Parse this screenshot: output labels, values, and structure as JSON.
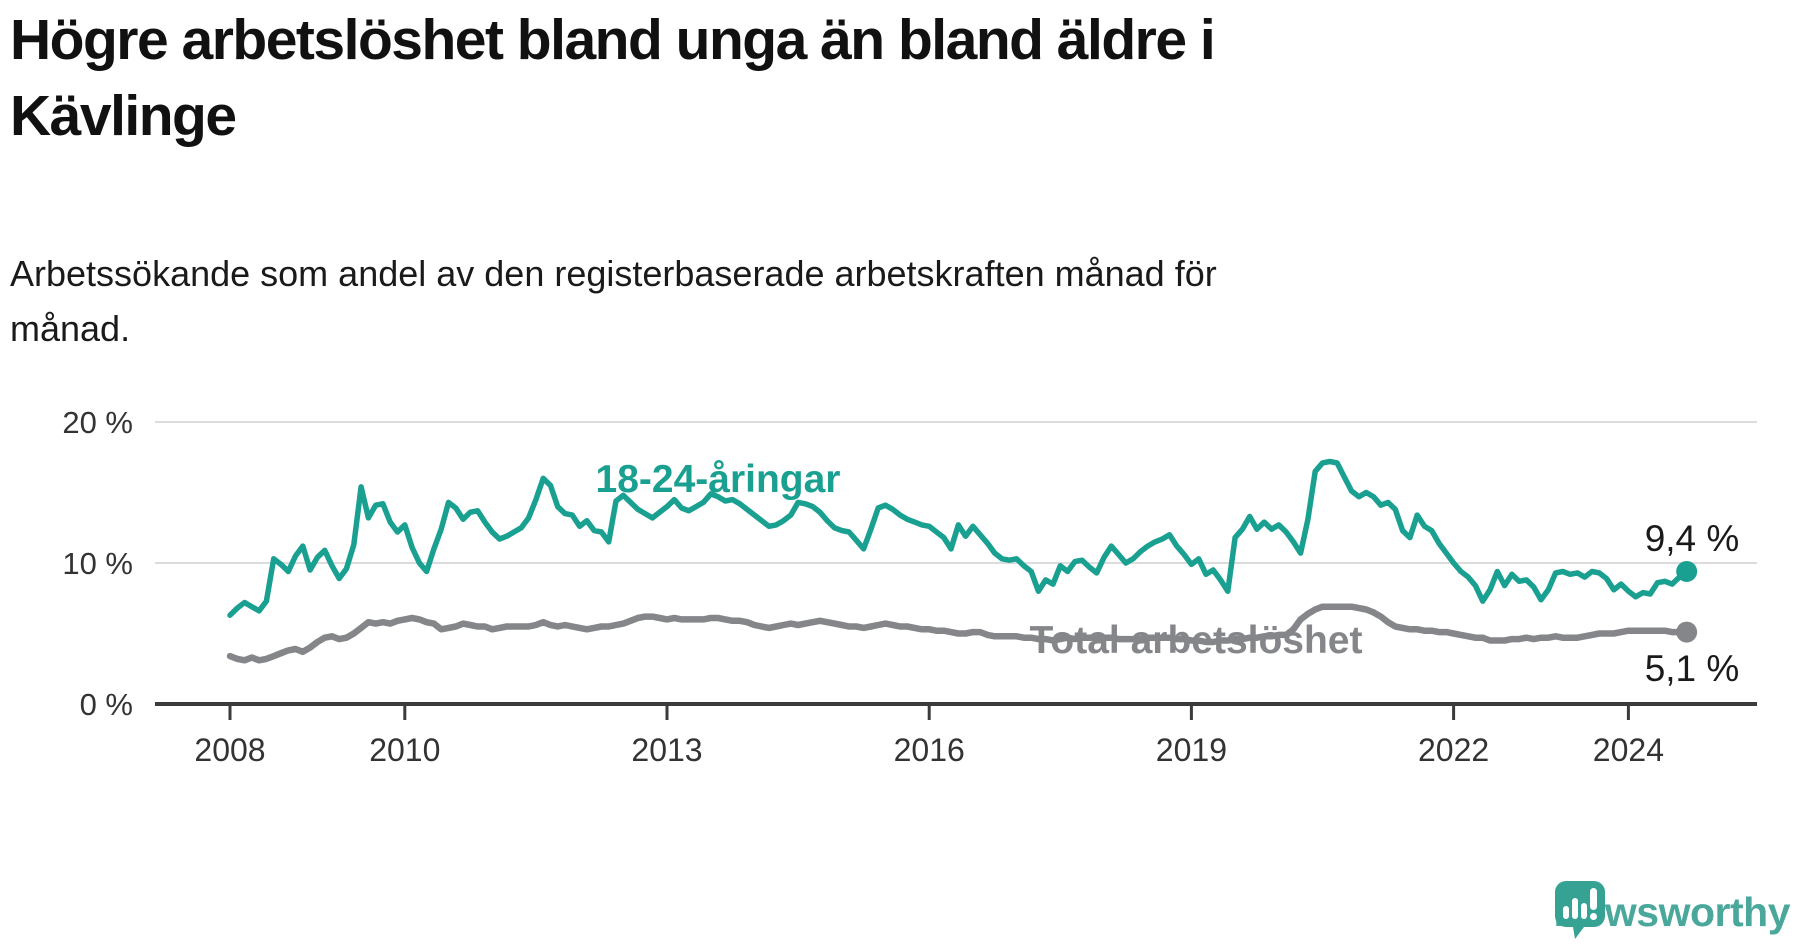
{
  "header": {
    "title_lines": [
      "Högre arbetslöshet bland unga än bland äldre i",
      "Kävlinge"
    ],
    "subtitle_lines": [
      "Arbetssökande som andel av den registerbaserade arbetskraften månad för",
      "månad."
    ]
  },
  "chart": {
    "y_axis": {
      "ticks": [
        {
          "value": 20,
          "label": "20 %"
        },
        {
          "value": 10,
          "label": "10 %"
        },
        {
          "value": 0,
          "label": "0 %"
        }
      ]
    },
    "x_axis": {
      "ticks": [
        {
          "value": 2008,
          "label": "2008"
        },
        {
          "value": 2010,
          "label": "2010"
        },
        {
          "value": 2013,
          "label": "2013"
        },
        {
          "value": 2016,
          "label": "2016"
        },
        {
          "value": 2019,
          "label": "2019"
        },
        {
          "value": 2022,
          "label": "2022"
        },
        {
          "value": 2024,
          "label": "2024"
        }
      ]
    },
    "series_labels": {
      "youth": "18-24-åringar",
      "total": "Total arbetslöshet"
    },
    "end_labels": {
      "youth": "9,4 %",
      "total": "5,1 %"
    },
    "colors": {
      "youth": "#1aa091",
      "total": "#85868a",
      "axis": "#3b3b3b",
      "grid": "#dcdcdc",
      "tick_text": "#333333",
      "value_text": "#1a1a1a",
      "brand_teal": "#4aa79b",
      "logo_bubble": "#35a293"
    }
  },
  "chart_data": {
    "type": "line",
    "title": "Högre arbetslöshet bland unga än bland äldre i Kävlinge",
    "subtitle": "Arbetssökande som andel av den registerbaserade arbetskraften månad för månad.",
    "x_unit": "decimal year, monthly points from Jan 2008 to Sep 2024",
    "x_start": 2008.0,
    "x_step": 0.08333333,
    "xlim": [
      2008.0,
      2024.67
    ],
    "ylim": [
      0,
      21
    ],
    "grid": "horizontal",
    "legend": "inline-labels",
    "series": [
      {
        "name": "18-24-åringar",
        "color": "#1aa091",
        "end_value": 9.4,
        "end_value_label": "9,4 %",
        "values": [
          6.3,
          6.8,
          7.2,
          6.9,
          6.6,
          7.3,
          10.3,
          9.9,
          9.4,
          10.5,
          11.2,
          9.5,
          10.4,
          10.9,
          9.8,
          8.9,
          9.6,
          11.3,
          15.4,
          13.2,
          14.1,
          14.2,
          12.9,
          12.2,
          12.7,
          11.1,
          10.0,
          9.4,
          11.0,
          12.4,
          14.3,
          13.9,
          13.1,
          13.6,
          13.7,
          12.9,
          12.2,
          11.7,
          11.9,
          12.2,
          12.5,
          13.2,
          14.5,
          16.0,
          15.5,
          14.0,
          13.5,
          13.4,
          12.6,
          13.0,
          12.3,
          12.2,
          11.5,
          14.4,
          14.8,
          14.3,
          13.8,
          13.5,
          13.2,
          13.6,
          14.0,
          14.5,
          13.9,
          13.7,
          14.0,
          14.3,
          14.9,
          14.7,
          14.4,
          14.5,
          14.2,
          13.8,
          13.4,
          13.0,
          12.6,
          12.7,
          13.0,
          13.4,
          14.3,
          14.2,
          14.0,
          13.6,
          13.0,
          12.5,
          12.3,
          12.2,
          11.6,
          11.0,
          12.4,
          13.9,
          14.1,
          13.8,
          13.4,
          13.1,
          12.9,
          12.7,
          12.6,
          12.2,
          11.8,
          11.0,
          12.7,
          11.9,
          12.6,
          12.0,
          11.4,
          10.7,
          10.3,
          10.2,
          10.3,
          9.8,
          9.4,
          8.0,
          8.8,
          8.5,
          9.8,
          9.4,
          10.1,
          10.2,
          9.7,
          9.3,
          10.4,
          11.2,
          10.6,
          10.0,
          10.3,
          10.8,
          11.2,
          11.5,
          11.7,
          12.0,
          11.2,
          10.6,
          9.9,
          10.3,
          9.2,
          9.5,
          8.8,
          8.0,
          11.8,
          12.4,
          13.3,
          12.4,
          12.9,
          12.4,
          12.7,
          12.2,
          11.5,
          10.7,
          13.1,
          16.5,
          17.1,
          17.2,
          17.1,
          16.1,
          15.1,
          14.7,
          15.0,
          14.7,
          14.1,
          14.3,
          13.8,
          12.3,
          11.8,
          13.4,
          12.6,
          12.3,
          11.4,
          10.7,
          10.0,
          9.4,
          9.0,
          8.4,
          7.3,
          8.1,
          9.4,
          8.4,
          9.2,
          8.7,
          8.8,
          8.3,
          7.4,
          8.1,
          9.3,
          9.4,
          9.2,
          9.3,
          9.0,
          9.4,
          9.3,
          8.9,
          8.1,
          8.5,
          8.0,
          7.6,
          7.9,
          7.8,
          8.6,
          8.7,
          8.5,
          9.0,
          9.4
        ]
      },
      {
        "name": "Total arbetslöshet",
        "color": "#85868a",
        "end_value": 5.1,
        "end_value_label": "5,1 %",
        "values": [
          3.4,
          3.2,
          3.1,
          3.3,
          3.1,
          3.2,
          3.4,
          3.6,
          3.8,
          3.9,
          3.7,
          4.0,
          4.4,
          4.7,
          4.8,
          4.6,
          4.7,
          5.0,
          5.4,
          5.8,
          5.7,
          5.8,
          5.7,
          5.9,
          6.0,
          6.1,
          6.0,
          5.8,
          5.7,
          5.3,
          5.4,
          5.5,
          5.7,
          5.6,
          5.5,
          5.5,
          5.3,
          5.4,
          5.5,
          5.5,
          5.5,
          5.5,
          5.6,
          5.8,
          5.6,
          5.5,
          5.6,
          5.5,
          5.4,
          5.3,
          5.4,
          5.5,
          5.5,
          5.6,
          5.7,
          5.9,
          6.1,
          6.2,
          6.2,
          6.1,
          6.0,
          6.1,
          6.0,
          6.0,
          6.0,
          6.0,
          6.1,
          6.1,
          6.0,
          5.9,
          5.9,
          5.8,
          5.6,
          5.5,
          5.4,
          5.5,
          5.6,
          5.7,
          5.6,
          5.7,
          5.8,
          5.9,
          5.8,
          5.7,
          5.6,
          5.5,
          5.5,
          5.4,
          5.5,
          5.6,
          5.7,
          5.6,
          5.5,
          5.5,
          5.4,
          5.3,
          5.3,
          5.2,
          5.2,
          5.1,
          5.0,
          5.0,
          5.1,
          5.1,
          4.9,
          4.8,
          4.8,
          4.8,
          4.8,
          4.7,
          4.7,
          4.6,
          4.6,
          4.5,
          4.6,
          4.7,
          4.6,
          4.7,
          4.7,
          4.7,
          4.7,
          4.7,
          4.6,
          4.6,
          4.6,
          4.6,
          4.7,
          4.7,
          4.7,
          4.7,
          4.6,
          4.6,
          4.5,
          4.5,
          4.4,
          4.4,
          4.5,
          4.5,
          4.6,
          4.6,
          4.7,
          4.7,
          4.8,
          4.8,
          4.9,
          4.9,
          5.3,
          6.0,
          6.4,
          6.7,
          6.9,
          6.9,
          6.9,
          6.9,
          6.9,
          6.8,
          6.7,
          6.5,
          6.2,
          5.8,
          5.5,
          5.4,
          5.3,
          5.3,
          5.2,
          5.2,
          5.1,
          5.1,
          5.0,
          4.9,
          4.8,
          4.7,
          4.7,
          4.5,
          4.5,
          4.5,
          4.6,
          4.6,
          4.7,
          4.6,
          4.7,
          4.7,
          4.8,
          4.7,
          4.7,
          4.7,
          4.8,
          4.9,
          5.0,
          5.0,
          5.0,
          5.1,
          5.2,
          5.2,
          5.2,
          5.2,
          5.2,
          5.2,
          5.1,
          5.1,
          5.1
        ]
      }
    ]
  },
  "footer": {
    "brand": "Newsworthy"
  }
}
